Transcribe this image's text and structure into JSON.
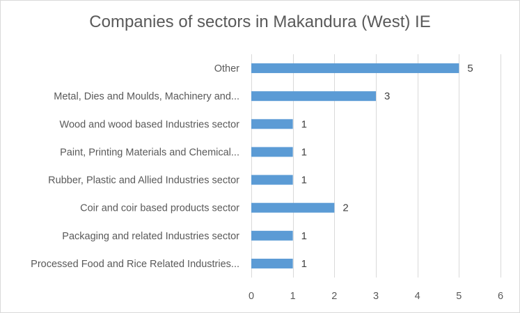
{
  "chart_data": {
    "type": "bar",
    "orientation": "horizontal",
    "title": "Companies of sectors in Makandura (West) IE",
    "categories": [
      "Other",
      "Metal, Dies and Moulds, Machinery and...",
      "Wood and wood based Industries sector",
      "Paint, Printing Materials and Chemical...",
      "Rubber, Plastic and Allied Industries sector",
      "Coir and coir based products sector",
      "Packaging and related Industries sector",
      "Processed Food and Rice Related Industries..."
    ],
    "values": [
      5,
      3,
      1,
      1,
      1,
      2,
      1,
      1
    ],
    "xlim": [
      0,
      6
    ],
    "x_ticks": [
      0,
      1,
      2,
      3,
      4,
      5,
      6
    ],
    "xlabel": "",
    "ylabel": "",
    "grid": true,
    "legend": "none",
    "data_labels": true,
    "bar_color": "#5b9bd5"
  }
}
